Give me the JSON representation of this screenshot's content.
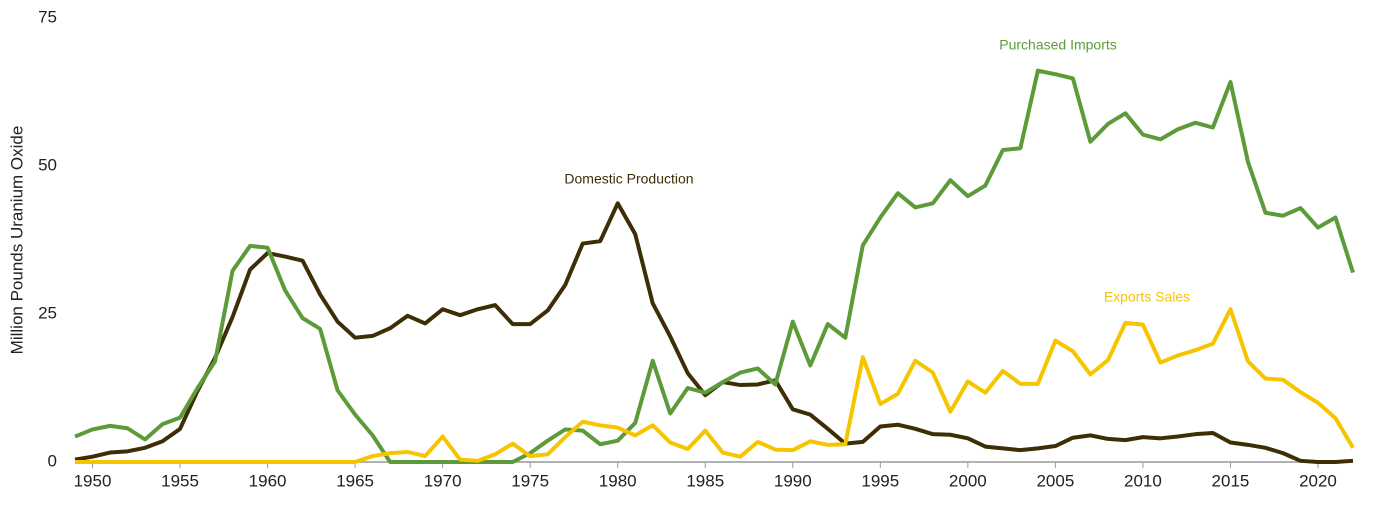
{
  "chart_data": {
    "type": "line",
    "y_label": "Million Pounds Uranium Oxide",
    "x": [
      1949,
      1950,
      1951,
      1952,
      1953,
      1954,
      1955,
      1956,
      1957,
      1958,
      1959,
      1960,
      1961,
      1962,
      1963,
      1964,
      1965,
      1966,
      1967,
      1968,
      1969,
      1970,
      1971,
      1972,
      1973,
      1974,
      1975,
      1976,
      1977,
      1978,
      1979,
      1980,
      1981,
      1982,
      1983,
      1984,
      1985,
      1986,
      1987,
      1988,
      1989,
      1990,
      1991,
      1992,
      1993,
      1994,
      1995,
      1996,
      1997,
      1998,
      1999,
      2000,
      2001,
      2002,
      2003,
      2004,
      2005,
      2006,
      2007,
      2008,
      2009,
      2010,
      2011,
      2012,
      2013,
      2014,
      2015,
      2016,
      2017,
      2018,
      2019,
      2020,
      2021,
      2022
    ],
    "series": [
      {
        "name": "Domestic Production",
        "color": "#3d2e05",
        "values": [
          0.4,
          0.9,
          1.6,
          1.8,
          2.4,
          3.5,
          5.6,
          12,
          17.6,
          24.5,
          32.5,
          35.3,
          34.7,
          34.0,
          28.3,
          23.7,
          21.0,
          21.3,
          22.6,
          24.7,
          23.4,
          25.8,
          24.8,
          25.8,
          26.5,
          23.3,
          23.3,
          25.6,
          29.9,
          36.9,
          37.3,
          43.7,
          38.5,
          26.8,
          21.2,
          15.0,
          11.3,
          13.5,
          13.0,
          13.1,
          13.8,
          8.9,
          8.0,
          5.6,
          3.1,
          3.4,
          6.0,
          6.3,
          5.6,
          4.7,
          4.6,
          4.0,
          2.6,
          2.3,
          2.0,
          2.3,
          2.7,
          4.1,
          4.5,
          3.9,
          3.7,
          4.2,
          4.0,
          4.3,
          4.7,
          4.9,
          3.3,
          2.9,
          2.4,
          1.5,
          0.2,
          0.0,
          0.0,
          0.2
        ]
      },
      {
        "name": "Purchased Imports",
        "color": "#5d9b3a",
        "values": [
          4.3,
          5.5,
          6.1,
          5.7,
          3.8,
          6.4,
          7.5,
          12.5,
          17.0,
          32.3,
          36.5,
          36.2,
          29.0,
          24.3,
          22.5,
          12.1,
          8.0,
          4.5,
          0,
          0,
          0,
          0,
          0,
          0,
          0,
          0,
          1.5,
          3.6,
          5.5,
          5.3,
          3.0,
          3.6,
          6.6,
          17.1,
          8.2,
          12.5,
          11.7,
          13.5,
          15.1,
          15.8,
          13.1,
          23.7,
          16.3,
          23.3,
          21.0,
          36.6,
          41.3,
          45.4,
          43.0,
          43.7,
          47.6,
          44.9,
          46.7,
          52.7,
          53.0,
          66.1,
          65.5,
          64.8,
          54.1,
          57.1,
          58.9,
          55.3,
          54.5,
          56.2,
          57.3,
          56.5,
          64.2,
          50.7,
          42.1,
          41.6,
          42.9,
          39.6,
          41.3,
          32.0
        ]
      },
      {
        "name": "Exports Sales",
        "color": "#f6c500",
        "values": [
          0,
          0,
          0,
          0,
          0,
          0,
          0,
          0,
          0,
          0,
          0,
          0,
          0,
          0,
          0,
          0,
          0,
          1.0,
          1.5,
          1.7,
          1.0,
          4.3,
          0.4,
          0.2,
          1.3,
          3.1,
          1.0,
          1.3,
          4.2,
          6.8,
          6.2,
          5.8,
          4.5,
          6.2,
          3.3,
          2.2,
          5.3,
          1.6,
          0.9,
          3.4,
          2.1,
          2.0,
          3.5,
          2.9,
          3.0,
          17.7,
          9.8,
          11.5,
          17.1,
          15.1,
          8.5,
          13.6,
          11.7,
          15.4,
          13.2,
          13.2,
          20.5,
          18.7,
          14.8,
          17.2,
          23.5,
          23.2,
          16.8,
          18.0,
          18.9,
          20.0,
          25.8,
          17.0,
          14.1,
          13.9,
          11.8,
          10.0,
          7.4,
          2.4
        ]
      }
    ],
    "xlim": [
      1949,
      2022
    ],
    "xticks": [
      1950,
      1955,
      1960,
      1965,
      1970,
      1975,
      1980,
      1985,
      1990,
      1995,
      2000,
      2005,
      2010,
      2015,
      2020
    ],
    "ylim": [
      0,
      75
    ],
    "yticks": [
      0,
      25,
      50,
      75
    ],
    "grid": false
  }
}
